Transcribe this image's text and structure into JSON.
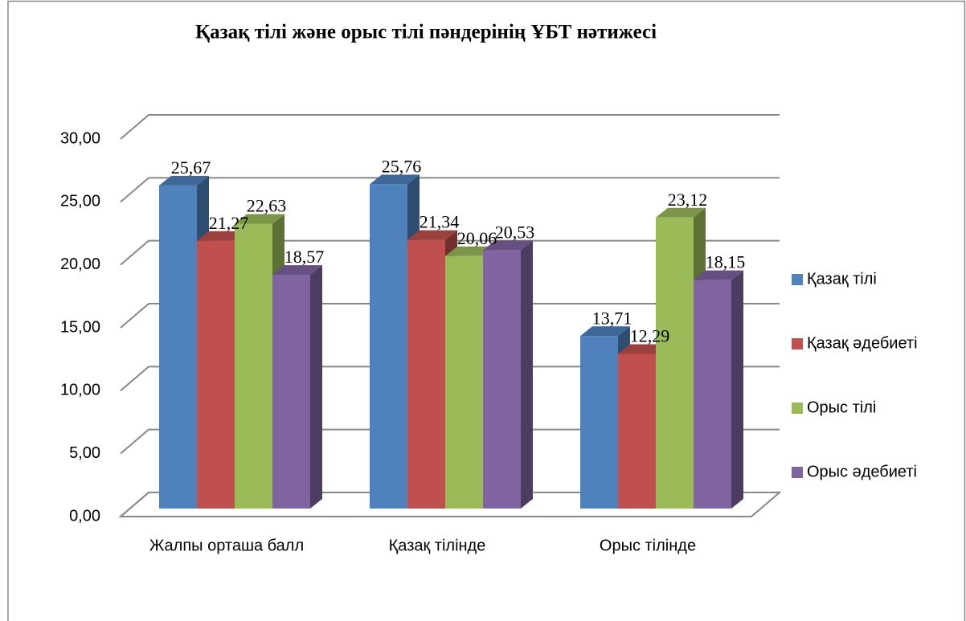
{
  "chart_data": {
    "type": "bar3d",
    "title": "Қазақ тілі және орыс тілі пәндерінің ҰБТ нәтижесі",
    "categories": [
      "Жалпы орташа балл",
      "Қазақ тілінде",
      "Орыс тілінде"
    ],
    "series": [
      {
        "name": "Қазақ тілі",
        "color": "#4f81bd",
        "values": [
          25.67,
          25.76,
          13.71
        ],
        "value_labels": [
          "25,67",
          "25,76",
          "13,71"
        ]
      },
      {
        "name": "Қазақ әдебиеті",
        "color": "#c0504d",
        "values": [
          21.27,
          21.34,
          12.29
        ],
        "value_labels": [
          "21,27",
          "21,34",
          "12,29"
        ]
      },
      {
        "name": "Орыс тілі",
        "color": "#9bbb59",
        "values": [
          22.63,
          20.06,
          23.12
        ],
        "value_labels": [
          "22,63",
          "20,06",
          "23,12"
        ]
      },
      {
        "name": "Орыс әдебиеті",
        "color": "#8064a2",
        "values": [
          18.57,
          20.53,
          18.15
        ],
        "value_labels": [
          "18,57",
          "20,53",
          "18,15"
        ]
      }
    ],
    "ylim": [
      0,
      30
    ],
    "yticks": [
      {
        "value": 0,
        "label": "0,00"
      },
      {
        "value": 5,
        "label": "5,00"
      },
      {
        "value": 10,
        "label": "10,00"
      },
      {
        "value": 15,
        "label": "15,00"
      },
      {
        "value": 20,
        "label": "20,00"
      },
      {
        "value": 25,
        "label": "25,00"
      },
      {
        "value": 30,
        "label": "30,00"
      }
    ],
    "grid": true,
    "legend": "right"
  }
}
